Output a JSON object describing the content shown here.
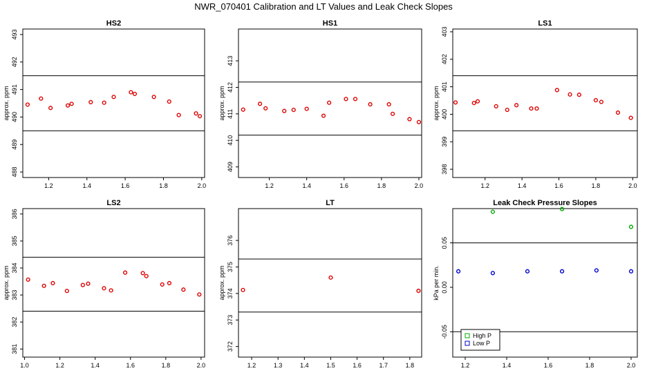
{
  "title": "NWR_070401  Calibration and LT Values and Leak Check Slopes",
  "chart_data": [
    {
      "type": "scatter",
      "title": "HS2",
      "ylabel": "approx. ppm",
      "xlim": [
        1.065,
        2.015
      ],
      "ylim": [
        487.8,
        493.2
      ],
      "xticks": [
        1.2,
        1.4,
        1.6,
        1.8,
        2.0
      ],
      "xtick_labels": [
        "1.2",
        "1.4",
        "1.6",
        "1.8",
        "2.0"
      ],
      "yticks": [
        488,
        489,
        490,
        491,
        492,
        493
      ],
      "ytick_labels": [
        "488",
        "489",
        "490",
        "491",
        "492",
        "493"
      ],
      "hlines": [
        491.5,
        489.5
      ],
      "series": [
        {
          "name": "HS2",
          "color": "#dd0000",
          "points": [
            [
              1.09,
              490.45
            ],
            [
              1.16,
              490.67
            ],
            [
              1.21,
              490.33
            ],
            [
              1.3,
              490.42
            ],
            [
              1.32,
              490.48
            ],
            [
              1.42,
              490.54
            ],
            [
              1.49,
              490.52
            ],
            [
              1.54,
              490.73
            ],
            [
              1.63,
              490.9
            ],
            [
              1.65,
              490.84
            ],
            [
              1.75,
              490.73
            ],
            [
              1.83,
              490.56
            ],
            [
              1.88,
              490.07
            ],
            [
              1.97,
              490.13
            ],
            [
              1.99,
              490.03
            ]
          ]
        }
      ]
    },
    {
      "type": "scatter",
      "title": "HS1",
      "ylabel": "approx. ppm",
      "xlim": [
        1.035,
        2.015
      ],
      "ylim": [
        408.6,
        414.2
      ],
      "xticks": [
        1.2,
        1.4,
        1.6,
        1.8,
        2.0
      ],
      "xtick_labels": [
        "1.2",
        "1.4",
        "1.6",
        "1.8",
        "2.0"
      ],
      "yticks": [
        409,
        410,
        411,
        412,
        413
      ],
      "ytick_labels": [
        "409",
        "410",
        "411",
        "412",
        "413"
      ],
      "hlines": [
        412.2,
        410.2
      ],
      "series": [
        {
          "name": "HS1",
          "color": "#dd0000",
          "points": [
            [
              1.06,
              411.16
            ],
            [
              1.15,
              411.38
            ],
            [
              1.18,
              411.21
            ],
            [
              1.28,
              411.11
            ],
            [
              1.33,
              411.15
            ],
            [
              1.4,
              411.19
            ],
            [
              1.49,
              410.93
            ],
            [
              1.52,
              411.42
            ],
            [
              1.61,
              411.56
            ],
            [
              1.66,
              411.56
            ],
            [
              1.74,
              411.36
            ],
            [
              1.84,
              411.36
            ],
            [
              1.86,
              411.0
            ],
            [
              1.95,
              410.8
            ],
            [
              2.0,
              410.69
            ]
          ]
        }
      ]
    },
    {
      "type": "scatter",
      "title": "LS1",
      "ylabel": "approx. ppm",
      "xlim": [
        1.025,
        2.025
      ],
      "ylim": [
        397.7,
        403.1
      ],
      "xticks": [
        1.2,
        1.4,
        1.6,
        1.8,
        2.0
      ],
      "xtick_labels": [
        "1.2",
        "1.4",
        "1.6",
        "1.8",
        "2.0"
      ],
      "yticks": [
        398,
        399,
        400,
        401,
        402,
        403
      ],
      "ytick_labels": [
        "398",
        "399",
        "400",
        "401",
        "402",
        "403"
      ],
      "hlines": [
        401.4,
        399.4
      ],
      "series": [
        {
          "name": "LS1",
          "color": "#dd0000",
          "points": [
            [
              1.04,
              400.43
            ],
            [
              1.14,
              400.41
            ],
            [
              1.16,
              400.47
            ],
            [
              1.26,
              400.29
            ],
            [
              1.32,
              400.16
            ],
            [
              1.37,
              400.33
            ],
            [
              1.45,
              400.21
            ],
            [
              1.48,
              400.21
            ],
            [
              1.59,
              400.88
            ],
            [
              1.66,
              400.72
            ],
            [
              1.71,
              400.71
            ],
            [
              1.8,
              400.51
            ],
            [
              1.83,
              400.45
            ],
            [
              1.92,
              400.06
            ],
            [
              1.99,
              399.87
            ]
          ]
        }
      ]
    },
    {
      "type": "scatter",
      "title": "LS2",
      "ylabel": "approx. ppm",
      "xlim": [
        0.99,
        2.02
      ],
      "ylim": [
        380.7,
        386.2
      ],
      "xticks": [
        1.0,
        1.2,
        1.4,
        1.6,
        1.8,
        2.0
      ],
      "xtick_labels": [
        "1.0",
        "1.2",
        "1.4",
        "1.6",
        "1.8",
        "2.0"
      ],
      "yticks": [
        381,
        382,
        383,
        384,
        385,
        386
      ],
      "ytick_labels": [
        "381",
        "382",
        "383",
        "384",
        "385",
        "386"
      ],
      "hlines": [
        384.4,
        382.4
      ],
      "series": [
        {
          "name": "LS2",
          "color": "#dd0000",
          "points": [
            [
              1.02,
              383.57
            ],
            [
              1.11,
              383.34
            ],
            [
              1.16,
              383.44
            ],
            [
              1.24,
              383.15
            ],
            [
              1.33,
              383.37
            ],
            [
              1.36,
              383.42
            ],
            [
              1.45,
              383.25
            ],
            [
              1.49,
              383.17
            ],
            [
              1.57,
              383.83
            ],
            [
              1.67,
              383.81
            ],
            [
              1.69,
              383.7
            ],
            [
              1.78,
              383.39
            ],
            [
              1.82,
              383.44
            ],
            [
              1.9,
              383.2
            ],
            [
              1.99,
              383.02
            ]
          ]
        }
      ]
    },
    {
      "type": "scatter",
      "title": "LT",
      "ylabel": "approx. ppm",
      "xlim": [
        1.15,
        1.845
      ],
      "ylim": [
        371.6,
        377.2
      ],
      "xticks": [
        1.2,
        1.3,
        1.4,
        1.5,
        1.6,
        1.7,
        1.8
      ],
      "xtick_labels": [
        "1.2",
        "1.3",
        "1.4",
        "1.5",
        "1.6",
        "1.7",
        "1.8"
      ],
      "yticks": [
        372,
        373,
        374,
        375,
        376
      ],
      "ytick_labels": [
        "372",
        "373",
        "374",
        "375",
        "376"
      ],
      "hlines": [
        375.3,
        373.3
      ],
      "series": [
        {
          "name": "LT",
          "color": "#dd0000",
          "points": [
            [
              1.167,
              374.13
            ],
            [
              1.5,
              374.6
            ],
            [
              1.833,
              374.1
            ]
          ]
        }
      ]
    },
    {
      "type": "scatter",
      "title": "Leak Check Pressure Slopes",
      "ylabel": "kPa per min.",
      "xlim": [
        1.14,
        2.03
      ],
      "ylim": [
        -0.0785,
        0.0885
      ],
      "xticks": [
        1.2,
        1.4,
        1.6,
        1.8,
        2.0
      ],
      "xtick_labels": [
        "1.2",
        "1.4",
        "1.6",
        "1.8",
        "2.0"
      ],
      "yticks": [
        -0.05,
        0.0,
        0.05
      ],
      "ytick_labels": [
        "-0.05",
        "0.00",
        "0.05"
      ],
      "hlines": [
        0.05,
        -0.05
      ],
      "legend": {
        "position": "bottom-left",
        "entries": [
          "High P",
          "Low P"
        ]
      },
      "series": [
        {
          "name": "High P",
          "color": "#00aa00",
          "points": [
            [
              1.333,
              0.085
            ],
            [
              1.667,
              0.088
            ],
            [
              2.0,
              0.068
            ]
          ]
        },
        {
          "name": "Low P",
          "color": "#0000cc",
          "points": [
            [
              1.167,
              0.018
            ],
            [
              1.333,
              0.016
            ],
            [
              1.5,
              0.018
            ],
            [
              1.667,
              0.018
            ],
            [
              1.833,
              0.019
            ],
            [
              2.0,
              0.018
            ]
          ]
        }
      ]
    }
  ]
}
